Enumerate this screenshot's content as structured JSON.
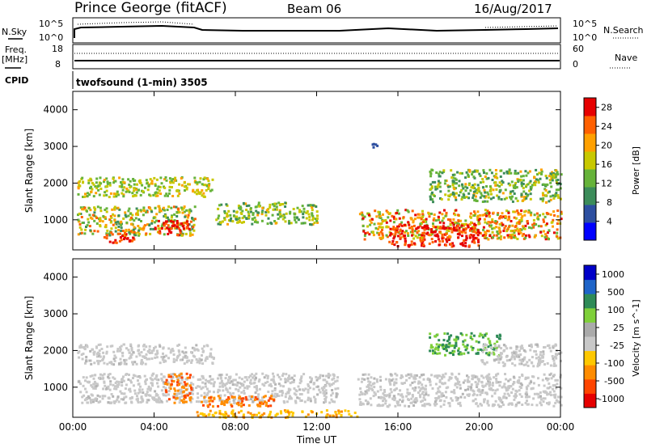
{
  "header": {
    "site": "Prince George (fitACF)",
    "beam": "Beam 06",
    "date": "16/Aug/2017"
  },
  "strip": {
    "nsky_label": "N.Sky",
    "nsearch_label": "N.Search",
    "nsky_ticks": [
      "10^5",
      "10^0"
    ],
    "nsearch_ticks": [
      "10^5",
      "10^0"
    ],
    "freq_label": "Freq.",
    "freq_unit": "[MHz]",
    "freq_ticks": [
      "18",
      "8"
    ],
    "nave_label": "Nave",
    "nave_ticks": [
      "60",
      "0"
    ],
    "cpid_label": "CPID",
    "cpid_value": "twofsound (1-min) 3505"
  },
  "colors": {
    "power_scale": [
      "#0000ff",
      "#2d4fa0",
      "#3c8c5a",
      "#66b33a",
      "#c8c800",
      "#ffa000",
      "#ff6000",
      "#e60000"
    ],
    "velocity_scale": [
      "#e60000",
      "#ff4500",
      "#ff8c00",
      "#ffc800",
      "#c8c8c8",
      "#aaaaaa",
      "#7fd03a",
      "#2e8b57",
      "#1e64c8",
      "#0000c8"
    ],
    "frame": "#000000"
  },
  "chart_data": [
    {
      "type": "heatmap",
      "title": "",
      "xlabel": "",
      "ylabel": "Slant Range [km]",
      "xlim": [
        "00:00",
        "24:00"
      ],
      "ylim": [
        180,
        4500
      ],
      "x_ticks": [
        "00:00",
        "04:00",
        "08:00",
        "12:00",
        "16:00",
        "20:00",
        "00:00"
      ],
      "y_ticks": [
        "1000",
        "2000",
        "3000",
        "4000"
      ],
      "colorbar": {
        "label": "Power [dB]",
        "ticks": [
          "4",
          "8",
          "12",
          "16",
          "20",
          "24",
          "28"
        ],
        "range": [
          0,
          30
        ]
      },
      "regions": [
        {
          "t_start": 0.2,
          "t_end": 6.9,
          "r_min": 1650,
          "r_max": 2200,
          "level": "12-20"
        },
        {
          "t_start": 0.2,
          "t_end": 6.0,
          "r_min": 600,
          "r_max": 1400,
          "level": "8-24"
        },
        {
          "t_start": 4.0,
          "t_end": 6.0,
          "r_min": 600,
          "r_max": 1000,
          "level": "24-30"
        },
        {
          "t_start": 1.5,
          "t_end": 3.0,
          "r_min": 400,
          "r_max": 700,
          "level": "24-30"
        },
        {
          "t_start": 7.0,
          "t_end": 12.0,
          "r_min": 900,
          "r_max": 1500,
          "level": "8-20"
        },
        {
          "t_start": 14.0,
          "t_end": 24.0,
          "r_min": 500,
          "r_max": 1300,
          "level": "12-28"
        },
        {
          "t_start": 15.5,
          "t_end": 20.0,
          "r_min": 300,
          "r_max": 900,
          "level": "24-30"
        },
        {
          "t_start": 17.5,
          "t_end": 24.0,
          "r_min": 1500,
          "r_max": 2400,
          "level": "8-20"
        },
        {
          "t_start": 14.6,
          "t_end": 15.0,
          "r_min": 2900,
          "r_max": 3100,
          "level": "4-8"
        }
      ]
    },
    {
      "type": "heatmap",
      "title": "",
      "xlabel": "Time UT",
      "ylabel": "Slant Range [km]",
      "xlim": [
        "00:00",
        "24:00"
      ],
      "ylim": [
        180,
        4500
      ],
      "x_ticks": [
        "00:00",
        "04:00",
        "08:00",
        "12:00",
        "16:00",
        "20:00",
        "00:00"
      ],
      "y_ticks": [
        "1000",
        "2000",
        "3000",
        "4000"
      ],
      "colorbar": {
        "label": "Velocity [m s^-1]",
        "ticks": [
          "1000",
          "500",
          "100",
          "25",
          "-25",
          "-100",
          "-500",
          "-1000"
        ]
      },
      "regions": [
        {
          "t_start": 0.2,
          "t_end": 6.9,
          "r_min": 1650,
          "r_max": 2200,
          "velocity": "-25..25"
        },
        {
          "t_start": 0.2,
          "t_end": 13.0,
          "r_min": 600,
          "r_max": 1400,
          "velocity": "-25..25"
        },
        {
          "t_start": 4.5,
          "t_end": 5.8,
          "r_min": 600,
          "r_max": 1400,
          "velocity": "-500..-100"
        },
        {
          "t_start": 6.2,
          "t_end": 10.0,
          "r_min": 500,
          "r_max": 800,
          "velocity": "-500..-100"
        },
        {
          "t_start": 14.0,
          "t_end": 24.0,
          "r_min": 500,
          "r_max": 1400,
          "velocity": "-25..25"
        },
        {
          "t_start": 17.5,
          "t_end": 21.0,
          "r_min": 1900,
          "r_max": 2500,
          "velocity": "25..500"
        },
        {
          "t_start": 20.0,
          "t_end": 24.0,
          "r_min": 1600,
          "r_max": 2200,
          "velocity": "-25..25"
        },
        {
          "t_start": 6.0,
          "t_end": 14.0,
          "r_min": 200,
          "r_max": 400,
          "velocity": "-100..-25"
        }
      ]
    }
  ]
}
